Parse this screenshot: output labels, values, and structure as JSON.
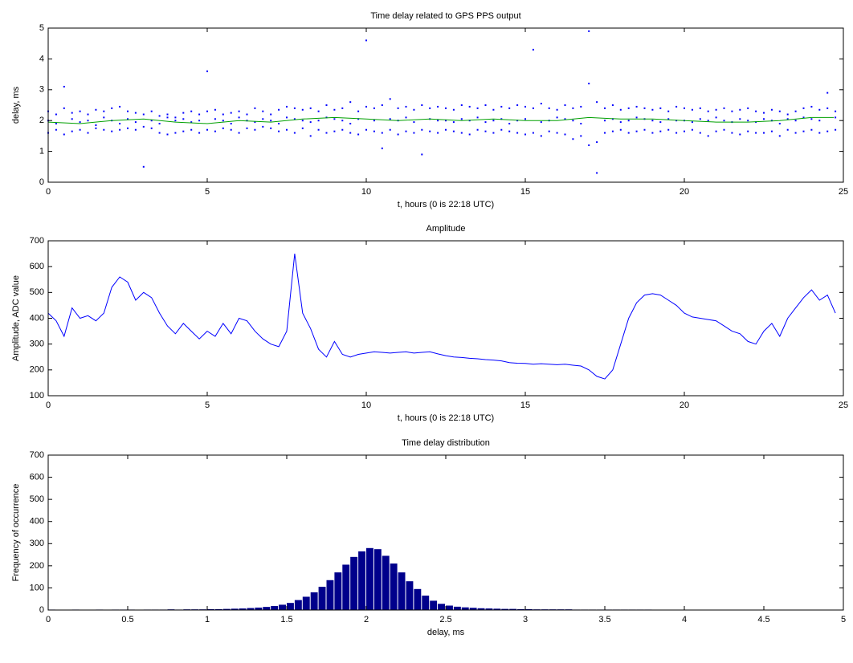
{
  "chart_data": [
    {
      "type": "scatter",
      "title": "Time delay related to GPS PPS output",
      "xlabel": "t, hours (0 is 22:18 UTC)",
      "ylabel": "delay, ms",
      "xlim": [
        0,
        25
      ],
      "ylim": [
        0,
        5
      ],
      "xticks": [
        0,
        5,
        10,
        15,
        20,
        25
      ],
      "yticks": [
        0,
        1,
        2,
        3,
        4,
        5
      ],
      "x": [
        0,
        0.25,
        0.5,
        0.75,
        1,
        1.25,
        1.5,
        1.75,
        2,
        2.25,
        2.5,
        2.75,
        3,
        3.25,
        3.5,
        3.75,
        4,
        4.25,
        4.5,
        4.75,
        5,
        5.25,
        5.5,
        5.75,
        6,
        6.25,
        6.5,
        6.75,
        7,
        7.25,
        7.5,
        7.75,
        8,
        8.25,
        8.5,
        8.75,
        9,
        9.25,
        9.5,
        9.75,
        10,
        10.25,
        10.5,
        10.75,
        11,
        11.25,
        11.5,
        11.75,
        12,
        12.25,
        12.5,
        12.75,
        13,
        13.25,
        13.5,
        13.75,
        14,
        14.25,
        14.5,
        14.75,
        15,
        15.25,
        15.5,
        15.75,
        16,
        16.25,
        16.5,
        16.75,
        17,
        17.25,
        17.5,
        17.75,
        18,
        18.25,
        18.5,
        18.75,
        19,
        19.25,
        19.5,
        19.75,
        20,
        20.25,
        20.5,
        20.75,
        21,
        21.25,
        21.5,
        21.75,
        22,
        22.25,
        22.5,
        22.75,
        23,
        23.25,
        23.5,
        23.75,
        24,
        24.25,
        24.5,
        24.75
      ],
      "series": [
        {
          "color": "#0000ff",
          "mode": "marker",
          "values": [
            2.3,
            2.2,
            2.4,
            2.25,
            2.3,
            2.2,
            2.35,
            2.3,
            2.4,
            2.45,
            2.3,
            2.25,
            2.2,
            2.3,
            2.15,
            2.2,
            2.1,
            2.25,
            2.3,
            2.2,
            2.3,
            2.35,
            2.2,
            2.25,
            2.3,
            2.2,
            2.4,
            2.3,
            2.2,
            2.35,
            2.45,
            2.4,
            2.35,
            2.4,
            2.3,
            2.5,
            2.35,
            2.4,
            2.6,
            2.3,
            2.45,
            2.4,
            2.5,
            2.7,
            2.4,
            2.45,
            2.35,
            2.5,
            2.4,
            2.45,
            2.4,
            2.35,
            2.5,
            2.45,
            2.4,
            2.5,
            2.35,
            2.45,
            2.4,
            2.5,
            2.45,
            2.4,
            2.55,
            2.4,
            2.35,
            2.5,
            2.4,
            2.45,
            3.2,
            2.6,
            2.4,
            2.5,
            2.35,
            2.4,
            2.45,
            2.4,
            2.35,
            2.4,
            2.3,
            2.45,
            2.4,
            2.35,
            2.4,
            2.3,
            2.35,
            2.4,
            2.3,
            2.35,
            2.4,
            2.3,
            2.25,
            2.35,
            2.3,
            2.2,
            2.3,
            2.4,
            2.45,
            2.35,
            2.4,
            2.3
          ]
        },
        {
          "color": "#0000ff",
          "mode": "marker",
          "values": [
            1.6,
            1.7,
            1.55,
            1.65,
            1.7,
            1.6,
            1.75,
            1.7,
            1.65,
            1.7,
            1.75,
            1.7,
            1.8,
            1.75,
            1.6,
            1.55,
            1.6,
            1.65,
            1.7,
            1.6,
            1.7,
            1.65,
            1.75,
            1.7,
            1.6,
            1.75,
            1.7,
            1.8,
            1.75,
            1.65,
            1.7,
            1.6,
            1.75,
            1.5,
            1.7,
            1.6,
            1.65,
            1.7,
            1.6,
            1.55,
            1.7,
            1.65,
            1.6,
            1.7,
            1.55,
            1.65,
            1.6,
            1.7,
            1.65,
            1.6,
            1.7,
            1.65,
            1.6,
            1.55,
            1.7,
            1.65,
            1.6,
            1.7,
            1.65,
            1.6,
            1.55,
            1.6,
            1.5,
            1.65,
            1.6,
            1.55,
            1.4,
            1.5,
            1.2,
            1.3,
            1.6,
            1.65,
            1.7,
            1.6,
            1.65,
            1.7,
            1.6,
            1.65,
            1.7,
            1.6,
            1.65,
            1.7,
            1.6,
            1.5,
            1.65,
            1.7,
            1.6,
            1.55,
            1.65,
            1.6,
            1.6,
            1.65,
            1.5,
            1.7,
            1.6,
            1.65,
            1.7,
            1.6,
            1.65,
            1.7
          ]
        },
        {
          "color": "#0000ff",
          "mode": "marker",
          "values": [
            2.0,
            1.9,
            3.1,
            2.05,
            1.95,
            2.0,
            1.85,
            2.1,
            2.0,
            1.9,
            2.05,
            1.95,
            0.5,
            2.0,
            1.9,
            2.1,
            2.0,
            2.05,
            1.95,
            2.0,
            3.6,
            2.05,
            2.0,
            1.9,
            2.1,
            2.0,
            1.95,
            2.05,
            2.0,
            1.9,
            2.1,
            2.05,
            2.0,
            1.95,
            2.0,
            2.1,
            2.05,
            2.0,
            1.9,
            2.05,
            4.6,
            2.0,
            1.1,
            2.05,
            2.0,
            2.1,
            1.95,
            0.9,
            2.05,
            2.0,
            2.0,
            1.95,
            2.05,
            2.0,
            2.1,
            1.95,
            2.0,
            2.05,
            1.9,
            2.0,
            2.05,
            4.3,
            1.95,
            2.0,
            2.1,
            2.05,
            2.0,
            1.9,
            4.9,
            0.3,
            2.0,
            2.05,
            1.95,
            2.0,
            2.1,
            2.05,
            2.0,
            1.95,
            2.05,
            2.0,
            2.0,
            1.95,
            2.05,
            2.0,
            2.1,
            2.0,
            1.95,
            2.05,
            2.0,
            1.95,
            2.05,
            2.0,
            1.9,
            2.05,
            2.0,
            2.1,
            2.05,
            2.0,
            2.9,
            2.1
          ]
        },
        {
          "color": "#00a000",
          "mode": "line",
          "x": [
            0,
            1,
            2,
            3,
            4,
            5,
            6,
            7,
            8,
            9,
            10,
            11,
            12,
            13,
            14,
            15,
            16,
            17,
            18,
            19,
            20,
            21,
            22,
            23,
            24,
            24.7
          ],
          "values": [
            1.95,
            1.9,
            2.0,
            2.05,
            1.95,
            1.9,
            2.0,
            1.95,
            2.05,
            2.1,
            2.05,
            2.0,
            2.05,
            2.0,
            2.05,
            2.0,
            2.0,
            2.1,
            2.05,
            2.05,
            2.0,
            1.95,
            1.95,
            2.0,
            2.1,
            2.1
          ]
        }
      ]
    },
    {
      "type": "line",
      "title": "Amplitude",
      "xlabel": "t, hours (0 is 22:18 UTC)",
      "ylabel": "Amplitude, ADC value",
      "xlim": [
        0,
        25
      ],
      "ylim": [
        100,
        700
      ],
      "xticks": [
        0,
        5,
        10,
        15,
        20,
        25
      ],
      "yticks": [
        100,
        200,
        300,
        400,
        500,
        600,
        700
      ],
      "color": "#0000ff",
      "x": [
        0,
        0.25,
        0.5,
        0.75,
        1,
        1.25,
        1.5,
        1.75,
        2,
        2.25,
        2.5,
        2.75,
        3,
        3.25,
        3.5,
        3.75,
        4,
        4.25,
        4.5,
        4.75,
        5,
        5.25,
        5.5,
        5.75,
        6,
        6.25,
        6.5,
        6.75,
        7,
        7.25,
        7.5,
        7.75,
        8,
        8.25,
        8.5,
        8.75,
        9,
        9.25,
        9.5,
        9.75,
        10,
        10.25,
        10.5,
        10.75,
        11,
        11.25,
        11.5,
        11.75,
        12,
        12.25,
        12.5,
        12.75,
        13,
        13.25,
        13.5,
        13.75,
        14,
        14.25,
        14.5,
        14.75,
        15,
        15.25,
        15.5,
        15.75,
        16,
        16.25,
        16.5,
        16.75,
        17,
        17.25,
        17.5,
        17.75,
        18,
        18.25,
        18.5,
        18.75,
        19,
        19.25,
        19.5,
        19.75,
        20,
        20.25,
        20.5,
        20.75,
        21,
        21.25,
        21.5,
        21.75,
        22,
        22.25,
        22.5,
        22.75,
        23,
        23.25,
        23.5,
        23.75,
        24,
        24.25,
        24.5,
        24.75
      ],
      "values": [
        420,
        390,
        330,
        440,
        400,
        410,
        390,
        420,
        520,
        560,
        540,
        470,
        500,
        480,
        420,
        370,
        340,
        380,
        350,
        320,
        350,
        330,
        380,
        340,
        400,
        390,
        350,
        320,
        300,
        290,
        350,
        650,
        420,
        360,
        280,
        250,
        310,
        260,
        250,
        260,
        265,
        270,
        268,
        265,
        268,
        270,
        265,
        268,
        270,
        262,
        255,
        250,
        248,
        245,
        243,
        240,
        238,
        235,
        228,
        226,
        225,
        222,
        224,
        222,
        220,
        222,
        218,
        215,
        200,
        175,
        165,
        200,
        300,
        400,
        460,
        490,
        495,
        490,
        470,
        450,
        420,
        405,
        400,
        395,
        390,
        370,
        350,
        340,
        310,
        300,
        350,
        380,
        330,
        400,
        440,
        480,
        510,
        470,
        490,
        420
      ]
    },
    {
      "type": "histogram",
      "title": "Time delay distribution",
      "xlabel": "delay, ms",
      "ylabel": "Frequency of occurrence",
      "xlim": [
        0,
        5
      ],
      "ylim": [
        0,
        700
      ],
      "xticks": [
        0,
        0.5,
        1,
        1.5,
        2,
        2.5,
        3,
        3.5,
        4,
        4.5,
        5
      ],
      "yticks": [
        0,
        100,
        200,
        300,
        400,
        500,
        600,
        700
      ],
      "color": "#00008b",
      "bins": [
        0,
        0.05,
        0.1,
        0.15,
        0.2,
        0.25,
        0.3,
        0.35,
        0.4,
        0.45,
        0.5,
        0.55,
        0.6,
        0.65,
        0.7,
        0.75,
        0.8,
        0.85,
        0.9,
        0.95,
        1,
        1.05,
        1.1,
        1.15,
        1.2,
        1.25,
        1.3,
        1.35,
        1.4,
        1.45,
        1.5,
        1.55,
        1.6,
        1.65,
        1.7,
        1.75,
        1.8,
        1.85,
        1.9,
        1.95,
        2,
        2.05,
        2.1,
        2.15,
        2.2,
        2.25,
        2.3,
        2.35,
        2.4,
        2.45,
        2.5,
        2.55,
        2.6,
        2.65,
        2.7,
        2.75,
        2.8,
        2.85,
        2.9,
        2.95,
        3,
        3.05,
        3.1,
        3.15,
        3.2,
        3.25,
        3.3,
        3.35,
        3.4,
        3.45,
        3.5,
        3.55,
        3.6,
        3.65,
        3.7,
        3.75,
        3.8,
        3.85,
        3.9,
        3.95,
        4,
        4.05,
        4.1,
        4.15,
        4.2,
        4.25,
        4.3,
        4.35,
        4.4,
        4.45,
        4.5,
        4.55,
        4.6,
        4.65,
        4.7,
        4.75,
        4.8,
        4.85,
        4.9,
        4.95,
        5
      ],
      "values": [
        2,
        1,
        1,
        2,
        1,
        1,
        2,
        1,
        2,
        2,
        2,
        1,
        2,
        2,
        2,
        3,
        2,
        3,
        3,
        3,
        4,
        4,
        5,
        6,
        7,
        9,
        11,
        14,
        18,
        24,
        32,
        45,
        60,
        80,
        105,
        135,
        170,
        205,
        240,
        265,
        280,
        275,
        245,
        210,
        170,
        130,
        95,
        65,
        42,
        28,
        20,
        15,
        12,
        10,
        8,
        7,
        6,
        5,
        5,
        4,
        4,
        3,
        3,
        3,
        3,
        3,
        2,
        2,
        2,
        2,
        2,
        2,
        2,
        2,
        2,
        2,
        1,
        1,
        1,
        1,
        1,
        1,
        1,
        1,
        1,
        1,
        1,
        1,
        1,
        1,
        1,
        1,
        1,
        1,
        1,
        1,
        1,
        1,
        1,
        1
      ]
    }
  ]
}
